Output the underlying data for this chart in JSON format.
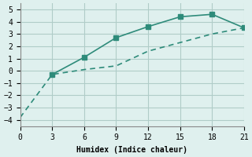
{
  "line1_x": [
    3,
    6,
    9,
    12,
    15,
    18,
    21
  ],
  "line1_y": [
    -0.3,
    1.1,
    2.7,
    3.6,
    4.4,
    4.6,
    3.5
  ],
  "line2_x": [
    0,
    3,
    6,
    9,
    12,
    15,
    18,
    21
  ],
  "line2_y": [
    -3.8,
    -0.3,
    0.1,
    0.4,
    1.6,
    2.3,
    3.0,
    3.5
  ],
  "color": "#2e8b7a",
  "xlabel": "Humidex (Indice chaleur)",
  "xlim": [
    0,
    21
  ],
  "ylim": [
    -4.5,
    5.5
  ],
  "xticks": [
    0,
    3,
    6,
    9,
    12,
    15,
    18,
    21
  ],
  "yticks": [
    -4,
    -3,
    -2,
    -1,
    0,
    1,
    2,
    3,
    4,
    5
  ],
  "bg_color": "#dff0ee",
  "grid_color": "#b0ccc8"
}
